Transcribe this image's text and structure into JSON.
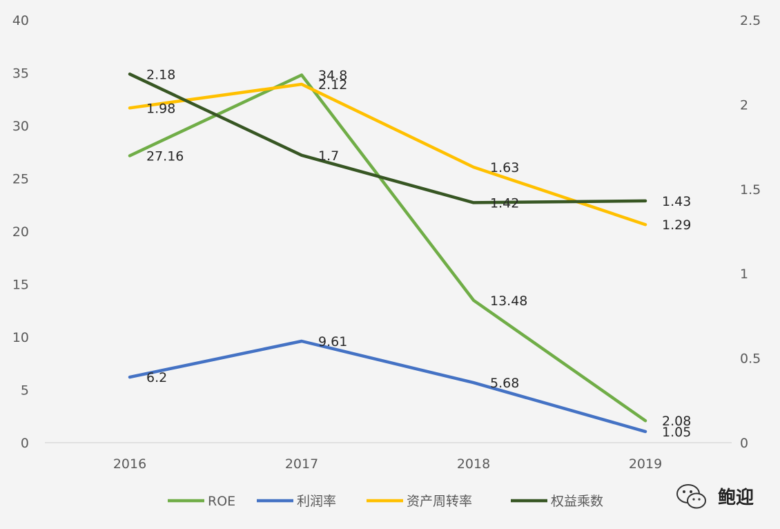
{
  "chart_data": {
    "type": "line",
    "categories": [
      "2016",
      "2017",
      "2018",
      "2019"
    ],
    "y_left": {
      "ylim": [
        0,
        40
      ],
      "ticks": [
        "0",
        "5",
        "10",
        "15",
        "20",
        "25",
        "30",
        "35",
        "40"
      ]
    },
    "y_right": {
      "ylim": [
        0,
        2.5
      ],
      "ticks": [
        "0",
        "0.5",
        "1",
        "1.5",
        "2",
        "2.5"
      ]
    },
    "series": [
      {
        "name": "ROE",
        "axis": "left",
        "color": "#70ad47",
        "values": [
          27.16,
          34.8,
          13.48,
          2.08
        ],
        "labels": [
          "27.16",
          "34.8",
          "13.48",
          "2.08"
        ]
      },
      {
        "name": "利润率",
        "axis": "left",
        "color": "#4472c4",
        "values": [
          6.2,
          9.61,
          5.68,
          1.05
        ],
        "labels": [
          "6.2",
          "9.61",
          "5.68",
          "1.05"
        ]
      },
      {
        "name": "资产周转率",
        "axis": "right",
        "color": "#ffc000",
        "values": [
          1.98,
          2.12,
          1.63,
          1.29
        ],
        "labels": [
          "1.98",
          "2.12",
          "1.63",
          "1.29"
        ]
      },
      {
        "name": "权益乘数",
        "axis": "right",
        "color": "#375623",
        "values": [
          2.18,
          1.7,
          1.42,
          1.43
        ],
        "labels": [
          "2.18",
          "1.7",
          "1.42",
          "1.43"
        ]
      }
    ],
    "legend_position": "bottom",
    "grid": false
  },
  "watermark": {
    "text": "鲍迎",
    "icon": "wechat-icon"
  }
}
